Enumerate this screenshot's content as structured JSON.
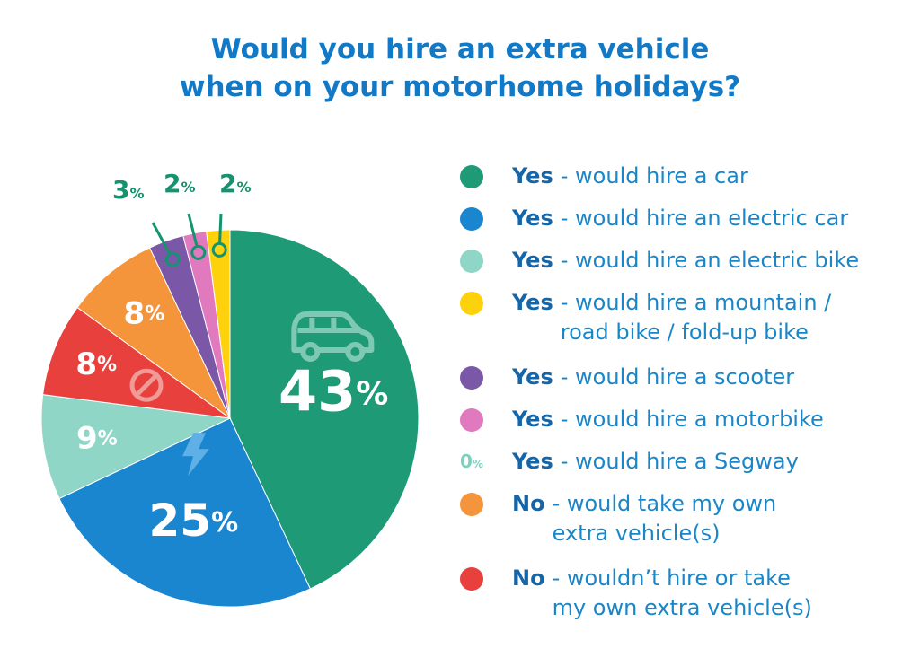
{
  "title_lines": [
    "Would you hire an extra vehicle",
    "when on your motorhome holidays?"
  ],
  "chart_data": {
    "type": "pie",
    "title": "Would you hire an extra vehicle when on your motorhome holidays?",
    "slices": [
      {
        "label": "Yes - would hire a car",
        "value": 43,
        "display": "43",
        "color": "#1e9a76",
        "icon": "car-icon"
      },
      {
        "label": "Yes - would hire an electric car",
        "value": 25,
        "display": "25",
        "color": "#1b86d0",
        "icon": "lightning-icon"
      },
      {
        "label": "Yes - would hire an electric bike",
        "value": 9,
        "display": "9",
        "color": "#8fd6c6"
      },
      {
        "label": "No - wouldn't hire or take my own extra vehicle(s)",
        "value": 8,
        "display": "8",
        "color": "#e8403c",
        "icon": "no-entry-icon"
      },
      {
        "label": "No - would take my own extra vehicle(s)",
        "value": 8,
        "display": "8",
        "color": "#f5953b"
      },
      {
        "label": "Yes - would hire a scooter",
        "value": 3,
        "display": "3",
        "color": "#7b57a8"
      },
      {
        "label": "Yes - would hire a motorbike",
        "value": 2,
        "display": "2",
        "color": "#e079bd"
      },
      {
        "label": "Yes - would hire a mountain / road bike / fold-up bike",
        "value": 2,
        "display": "2",
        "color": "#fdd10c"
      },
      {
        "label": "Yes - would hire a Segway",
        "value": 0,
        "display": "0",
        "color": "#7fcfbf"
      }
    ],
    "percent_symbol": "%",
    "legend_placement": "right"
  },
  "legend": [
    {
      "bold": "Yes",
      "text": "- would hire a car",
      "color": "#1e9a76"
    },
    {
      "bold": "Yes",
      "text": "- would hire an electric car",
      "color": "#1b86d0"
    },
    {
      "bold": "Yes",
      "text": "- would hire an electric bike",
      "color": "#8fd6c6"
    },
    {
      "bold": "Yes",
      "text": "- would hire a mountain /\nroad bike / fold-up bike",
      "color": "#fdd10c"
    },
    {
      "bold": "Yes",
      "text": "- would hire a scooter",
      "color": "#7b57a8"
    },
    {
      "bold": "Yes",
      "text": "- would hire a motorbike",
      "color": "#e079bd"
    },
    {
      "bold": "Yes",
      "text": "- would hire a Segway",
      "zero": "0",
      "color": "#7fcfbf"
    },
    {
      "bold": "No",
      "text": "- would take my own\nextra vehicle(s)",
      "color": "#f5953b"
    },
    {
      "bold": "No",
      "text": "- wouldn’t hire or take\nmy own extra vehicle(s)",
      "color": "#e8403c"
    }
  ]
}
